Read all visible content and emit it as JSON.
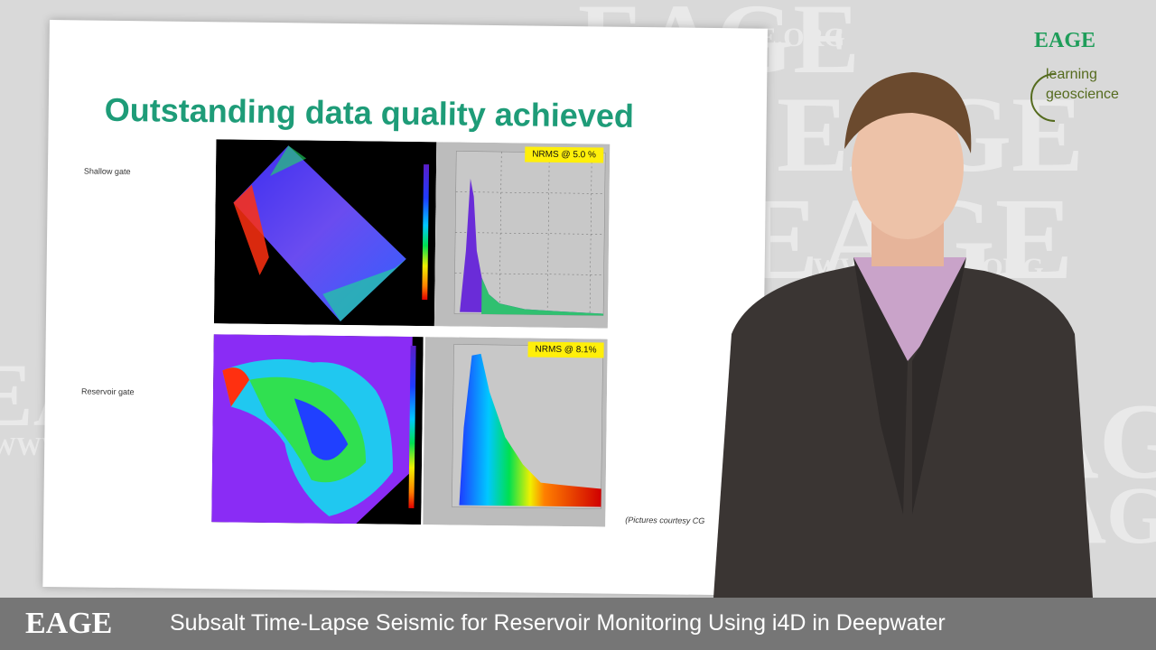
{
  "background": {
    "watermark_text": [
      "EAGE",
      "WWW.EAGE.ORG"
    ]
  },
  "slide": {
    "title": "Outstanding data quality achieved",
    "panels": [
      {
        "gate_label": "Shallow gate",
        "nrms_label": "NRMS @ 5.0 %"
      },
      {
        "gate_label": "Reservoir gate",
        "nrms_label": "NRMS @ 8.1%"
      }
    ],
    "courtesy": "(Pictures courtesy CG"
  },
  "logo": {
    "eage": "EAGE",
    "line1": "learning",
    "line2": "geoscience"
  },
  "lower_third": {
    "brand": "EAGE",
    "title": "Subsalt Time-Lapse Seismic for Reservoir Monitoring Using i4D in Deepwater"
  },
  "colors": {
    "title_green": "#1e9c78",
    "logo_green": "#1f9d5a",
    "nrms_yellow": "#ffef0a",
    "bar_gray": "#6e6e6e"
  }
}
